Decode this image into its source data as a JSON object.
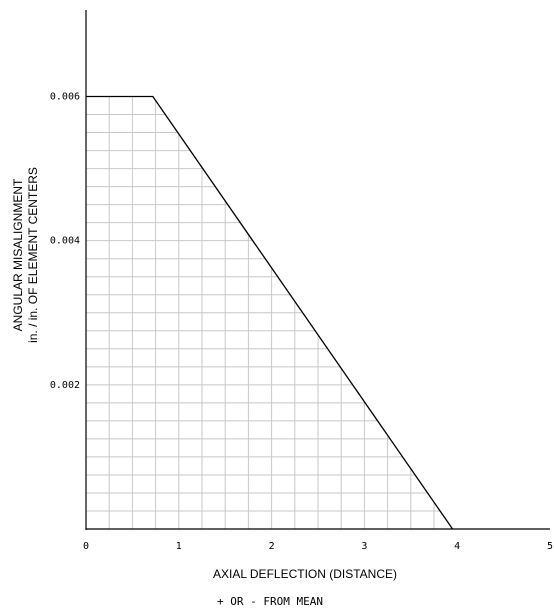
{
  "chart_data": {
    "type": "area",
    "title": "",
    "xlabel": "AXIAL DEFLECTION (DISTANCE)",
    "xlabel_sub": "+ OR - FROM MEAN",
    "ylabel_line1": "ANGULAR MISALIGNMENT",
    "ylabel_line2": "in. / in. OF ELEMENT CENTERS",
    "xlim": [
      0,
      5
    ],
    "ylim": [
      0,
      0.0072
    ],
    "x_ticks": [
      0,
      1,
      2,
      3,
      4,
      5
    ],
    "x_tick_labels": [
      "0",
      "1",
      "2",
      "3",
      "4",
      "5"
    ],
    "y_ticks": [
      0.002,
      0.004,
      0.006
    ],
    "y_tick_labels": [
      "0.002",
      "0.004",
      "0.006"
    ],
    "grid": true,
    "series": [
      {
        "x": [
          0,
          0.72,
          3.95
        ],
        "y": [
          0.006,
          0.006,
          0
        ]
      }
    ]
  }
}
